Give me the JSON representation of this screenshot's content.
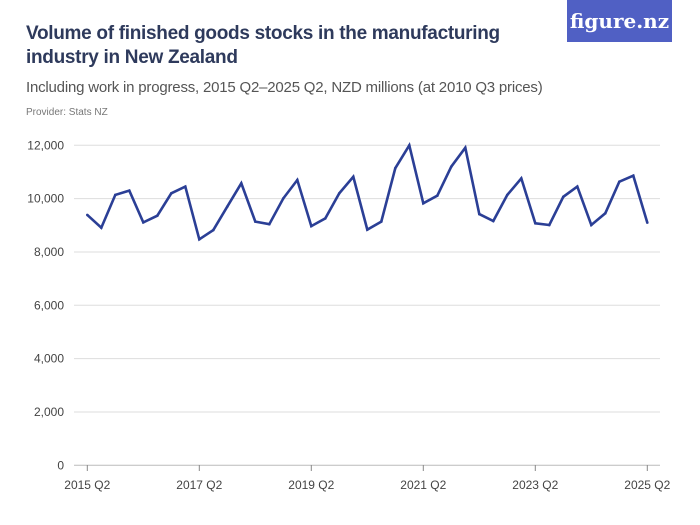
{
  "header": {
    "title": "Volume of finished goods stocks in the manufacturing industry in New Zealand",
    "subtitle": "Including work in progress, 2015 Q2–2025 Q2, NZD millions (at 2010 Q3 prices)",
    "provider": "Provider: Stats NZ",
    "logo": "figure.nz"
  },
  "colors": {
    "line": "#2b3f96",
    "logo_bg": "#5060c4",
    "grid": "#dddddd"
  },
  "chart_data": {
    "type": "line",
    "title": "Volume of finished goods stocks in the manufacturing industry in New Zealand",
    "xlabel": "",
    "ylabel": "",
    "ylim": [
      0,
      12000
    ],
    "yticks": [
      0,
      2000,
      4000,
      6000,
      8000,
      10000,
      12000
    ],
    "ytick_labels": [
      "0",
      "2,000",
      "4,000",
      "6,000",
      "8,000",
      "10,000",
      "12,000"
    ],
    "xtick_labels": [
      "2015 Q2",
      "2017 Q2",
      "2019 Q2",
      "2021 Q2",
      "2023 Q2",
      "2025 Q2"
    ],
    "grid": true,
    "x": [
      "2015 Q2",
      "2015 Q3",
      "2015 Q4",
      "2016 Q1",
      "2016 Q2",
      "2016 Q3",
      "2016 Q4",
      "2017 Q1",
      "2017 Q2",
      "2017 Q3",
      "2017 Q4",
      "2018 Q1",
      "2018 Q2",
      "2018 Q3",
      "2018 Q4",
      "2019 Q1",
      "2019 Q2",
      "2019 Q3",
      "2019 Q4",
      "2020 Q1",
      "2020 Q2",
      "2020 Q3",
      "2020 Q4",
      "2021 Q1",
      "2021 Q2",
      "2021 Q3",
      "2021 Q4",
      "2022 Q1",
      "2022 Q2",
      "2022 Q3",
      "2022 Q4",
      "2023 Q1",
      "2023 Q2",
      "2023 Q3",
      "2023 Q4",
      "2024 Q1",
      "2024 Q2",
      "2024 Q3",
      "2024 Q4",
      "2025 Q1",
      "2025 Q2"
    ],
    "values": [
      9390,
      8910,
      10140,
      10300,
      9110,
      9360,
      10200,
      10450,
      8475,
      8820,
      9700,
      10575,
      9140,
      9040,
      10010,
      10700,
      8970,
      9260,
      10200,
      10820,
      8840,
      9140,
      11140,
      12000,
      9825,
      10110,
      11200,
      11910,
      9420,
      9160,
      10140,
      10760,
      9075,
      9010,
      10070,
      10450,
      9010,
      9450,
      10635,
      10860,
      9100
    ]
  }
}
